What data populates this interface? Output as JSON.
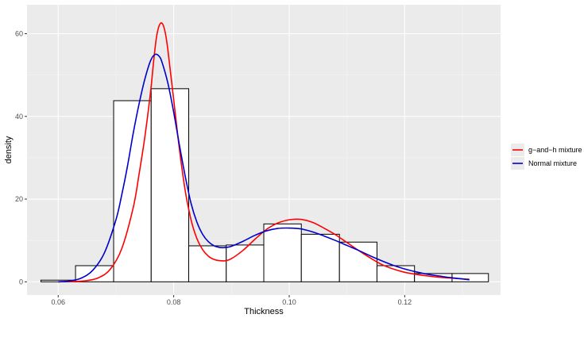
{
  "chart_data": {
    "type": "histogram",
    "xlabel": "Thickness",
    "ylabel": "density",
    "xlim": [
      0.0546,
      0.1366
    ],
    "ylim": [
      -3.2,
      67
    ],
    "x_ticks": [
      0.06,
      0.08,
      0.1,
      0.12
    ],
    "x_tick_labels": [
      "0.06",
      "0.08",
      "0.10",
      "0.12"
    ],
    "y_ticks": [
      0,
      20,
      40,
      60
    ],
    "y_tick_labels": [
      "0",
      "20",
      "40",
      "60"
    ],
    "grid": true,
    "legend_position": "right",
    "bins": [
      {
        "x0": 0.057,
        "x1": 0.063,
        "density": 0.4
      },
      {
        "x0": 0.063,
        "x1": 0.0696,
        "density": 3.9
      },
      {
        "x0": 0.0696,
        "x1": 0.0761,
        "density": 43.8
      },
      {
        "x0": 0.0761,
        "x1": 0.0826,
        "density": 46.7
      },
      {
        "x0": 0.0826,
        "x1": 0.0891,
        "density": 8.7
      },
      {
        "x0": 0.0891,
        "x1": 0.0956,
        "density": 8.9
      },
      {
        "x0": 0.0956,
        "x1": 0.1021,
        "density": 14.0
      },
      {
        "x0": 0.1021,
        "x1": 0.1087,
        "density": 11.5
      },
      {
        "x0": 0.1087,
        "x1": 0.1152,
        "density": 9.6
      },
      {
        "x0": 0.1152,
        "x1": 0.1217,
        "density": 3.9
      },
      {
        "x0": 0.1217,
        "x1": 0.1282,
        "density": 2.0
      },
      {
        "x0": 0.1282,
        "x1": 0.1345,
        "density": 2.0
      }
    ],
    "series": [
      {
        "name": "g−and−h mixture",
        "color": "#ff0000",
        "points": [
          [
            0.06,
            0
          ],
          [
            0.063,
            0.1
          ],
          [
            0.065,
            0.3
          ],
          [
            0.067,
            1.0
          ],
          [
            0.069,
            3.0
          ],
          [
            0.071,
            8.0
          ],
          [
            0.073,
            18.0
          ],
          [
            0.074,
            26.0
          ],
          [
            0.075,
            35.0
          ],
          [
            0.076,
            46.0
          ],
          [
            0.0765,
            53.0
          ],
          [
            0.077,
            59.0
          ],
          [
            0.0775,
            62.0
          ],
          [
            0.078,
            62.5
          ],
          [
            0.0785,
            60.5
          ],
          [
            0.079,
            56.0
          ],
          [
            0.08,
            44.0
          ],
          [
            0.081,
            32.0
          ],
          [
            0.082,
            22.0
          ],
          [
            0.083,
            15.0
          ],
          [
            0.084,
            10.5
          ],
          [
            0.085,
            7.8
          ],
          [
            0.086,
            6.2
          ],
          [
            0.087,
            5.4
          ],
          [
            0.088,
            5.1
          ],
          [
            0.089,
            5.1
          ],
          [
            0.09,
            5.6
          ],
          [
            0.092,
            7.6
          ],
          [
            0.094,
            10.2
          ],
          [
            0.096,
            12.6
          ],
          [
            0.098,
            14.2
          ],
          [
            0.1,
            15.0
          ],
          [
            0.102,
            15.1
          ],
          [
            0.104,
            14.4
          ],
          [
            0.106,
            13.0
          ],
          [
            0.108,
            11.4
          ],
          [
            0.11,
            9.5
          ],
          [
            0.112,
            7.6
          ],
          [
            0.114,
            5.8
          ],
          [
            0.116,
            4.2
          ],
          [
            0.118,
            3.1
          ],
          [
            0.12,
            2.3
          ],
          [
            0.122,
            1.8
          ],
          [
            0.124,
            1.4
          ],
          [
            0.126,
            1.1
          ],
          [
            0.128,
            0.9
          ],
          [
            0.13,
            0.7
          ],
          [
            0.1312,
            0.6
          ]
        ]
      },
      {
        "name": "Normal mixture",
        "color": "#0000cc",
        "points": [
          [
            0.06,
            0
          ],
          [
            0.062,
            0.2
          ],
          [
            0.064,
            0.9
          ],
          [
            0.066,
            2.8
          ],
          [
            0.068,
            7.0
          ],
          [
            0.07,
            15.0
          ],
          [
            0.071,
            21.0
          ],
          [
            0.072,
            28.0
          ],
          [
            0.073,
            36.0
          ],
          [
            0.074,
            43.0
          ],
          [
            0.075,
            49.0
          ],
          [
            0.076,
            53.5
          ],
          [
            0.0768,
            55.0
          ],
          [
            0.0775,
            54.5
          ],
          [
            0.078,
            53.0
          ],
          [
            0.079,
            48.0
          ],
          [
            0.08,
            41.0
          ],
          [
            0.081,
            33.0
          ],
          [
            0.082,
            25.5
          ],
          [
            0.083,
            19.0
          ],
          [
            0.084,
            14.5
          ],
          [
            0.085,
            11.5
          ],
          [
            0.086,
            9.7
          ],
          [
            0.087,
            8.7
          ],
          [
            0.088,
            8.3
          ],
          [
            0.089,
            8.3
          ],
          [
            0.09,
            8.6
          ],
          [
            0.092,
            9.8
          ],
          [
            0.094,
            11.2
          ],
          [
            0.096,
            12.3
          ],
          [
            0.098,
            12.9
          ],
          [
            0.1,
            13.0
          ],
          [
            0.102,
            12.8
          ],
          [
            0.104,
            12.1
          ],
          [
            0.106,
            11.1
          ],
          [
            0.108,
            10.0
          ],
          [
            0.11,
            8.8
          ],
          [
            0.112,
            7.6
          ],
          [
            0.114,
            6.3
          ],
          [
            0.116,
            5.1
          ],
          [
            0.118,
            4.0
          ],
          [
            0.12,
            3.1
          ],
          [
            0.122,
            2.4
          ],
          [
            0.124,
            1.8
          ],
          [
            0.126,
            1.4
          ],
          [
            0.128,
            1.0
          ],
          [
            0.13,
            0.7
          ],
          [
            0.1312,
            0.5
          ]
        ]
      }
    ]
  }
}
